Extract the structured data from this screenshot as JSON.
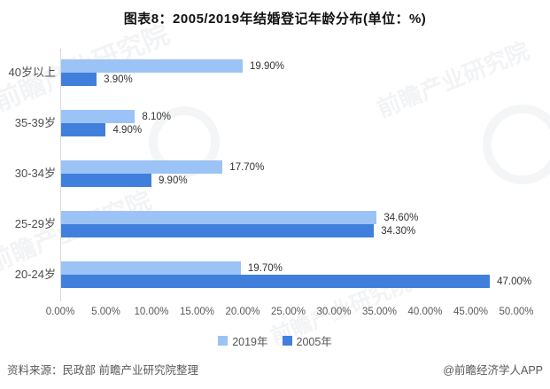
{
  "title": "图表8：2005/2019年结婚登记年龄分布(单位：%)",
  "chart_data": {
    "type": "bar",
    "orientation": "horizontal",
    "title": "图表8：2005/2019年结婚登记年龄分布(单位：%)",
    "categories": [
      "40岁以上",
      "35-39岁",
      "30-34岁",
      "25-29岁",
      "20-24岁"
    ],
    "series": [
      {
        "name": "2019年",
        "color": "#9CC3F6",
        "values": [
          19.9,
          8.1,
          17.7,
          34.6,
          19.7
        ],
        "labels": [
          "19.90%",
          "8.10%",
          "17.70%",
          "34.60%",
          "19.70%"
        ]
      },
      {
        "name": "2005年",
        "color": "#4080DC",
        "values": [
          3.9,
          4.9,
          9.9,
          34.3,
          47.0
        ],
        "labels": [
          "3.90%",
          "4.90%",
          "9.90%",
          "34.30%",
          "47.00%"
        ]
      }
    ],
    "x_ticks": [
      "0.00%",
      "5.00%",
      "10.00%",
      "15.00%",
      "20.00%",
      "25.00%",
      "30.00%",
      "35.00%",
      "40.00%",
      "45.00%",
      "50.00%"
    ],
    "xlim": [
      0,
      50
    ],
    "axis_color": "#d9d9d9",
    "grid": false,
    "legend_position": "bottom"
  },
  "footer": {
    "source": "资料来源：民政部 前瞻产业研究院整理",
    "credit": "@前瞻经济学人APP"
  },
  "watermark": {
    "text": "前瞻产业研究院"
  }
}
